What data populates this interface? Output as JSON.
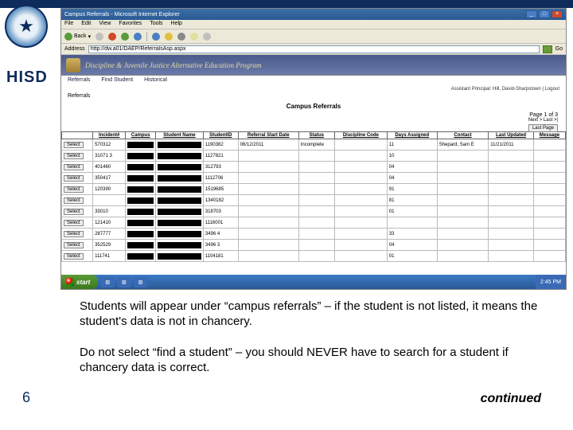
{
  "colors": {
    "brand_navy": "#0d2b5b",
    "ie_title_bg": "#3a6ea5",
    "banner_bg": "#5a6a9a",
    "taskbar_bg": "#2a5a95",
    "start_bg": "#3a7a1a"
  },
  "slide": {
    "hisd": "HISD",
    "text1": "Students will appear under “campus referrals” – if the student is not listed, it means the student's data is not in chancery.",
    "text2": "Do not select “find a student” – you should NEVER have to search for a student if chancery data is correct.",
    "page_num": "6",
    "continued": "continued"
  },
  "ie": {
    "title": "Campus Referrals - Microsoft Internet Explorer",
    "menu": [
      "File",
      "Edit",
      "View",
      "Favorites",
      "Tools",
      "Help"
    ],
    "back": "Back",
    "address_label": "Address",
    "url": "http://dw.a01/DAEP/ReferralsAsp.aspx",
    "go": "Go"
  },
  "page": {
    "banner": "Discipline & Juvenile Justice Alternative Education Program",
    "nav": {
      "referrals": "Referrals",
      "find": "Find Student",
      "historical": "Historical"
    },
    "assistant": "Assistant Principal: Hill, David-Sharpstown | Logout",
    "ref_label": "Referrals",
    "title": "Campus Referrals",
    "pager_info": "Page 1 of 3",
    "pager_next": "Next > Last >|",
    "last_page": "Last Page"
  },
  "grid": {
    "columns": [
      "",
      "Incident#",
      "Campus",
      "Student Name",
      "StudentID",
      "Referral Start Date",
      "Status",
      "Discipline Code",
      "Days Assigned",
      "Contact",
      "Last Updated",
      "Message"
    ],
    "select_label": "Select",
    "rows": [
      {
        "inc": "570312",
        "sid": "1190382",
        "date": "06/12/2011",
        "status": "Incomplete",
        "code": "",
        "days": "11",
        "contact": "Shepard, Sam E",
        "upd": "11/21/2011"
      },
      {
        "inc": "31071 3",
        "sid": "1127821",
        "date": "",
        "status": "",
        "code": "",
        "days": "10",
        "contact": "",
        "upd": ""
      },
      {
        "inc": "401460",
        "sid": "312793",
        "date": "",
        "status": "",
        "code": "",
        "days": "04",
        "contact": "",
        "upd": ""
      },
      {
        "inc": "350417",
        "sid": "1112706",
        "date": "",
        "status": "",
        "code": "",
        "days": "04",
        "contact": "",
        "upd": ""
      },
      {
        "inc": "120390",
        "sid": "1519685",
        "date": "",
        "status": "",
        "code": "",
        "days": "91",
        "contact": "",
        "upd": ""
      },
      {
        "inc": "",
        "sid": "1340182",
        "date": "",
        "status": "",
        "code": "",
        "days": "81",
        "contact": "",
        "upd": ""
      },
      {
        "inc": "33010",
        "sid": "318703",
        "date": "",
        "status": "",
        "code": "",
        "days": "01",
        "contact": "",
        "upd": ""
      },
      {
        "inc": "121410",
        "sid": "1116001",
        "date": "",
        "status": "",
        "code": "",
        "days": "",
        "contact": "",
        "upd": ""
      },
      {
        "inc": "287777",
        "sid": "3496 4",
        "date": "",
        "status": "",
        "code": "",
        "days": "33",
        "contact": "",
        "upd": ""
      },
      {
        "inc": "352529",
        "sid": "3496 3",
        "date": "",
        "status": "",
        "code": "",
        "days": "04",
        "contact": "",
        "upd": ""
      },
      {
        "inc": "111741",
        "sid": "1104181",
        "date": "",
        "status": "",
        "code": "",
        "days": "01",
        "contact": "",
        "upd": ""
      }
    ]
  },
  "taskbar": {
    "start": "start",
    "items": [
      "",
      "",
      ""
    ],
    "time": "2:45 PM"
  }
}
